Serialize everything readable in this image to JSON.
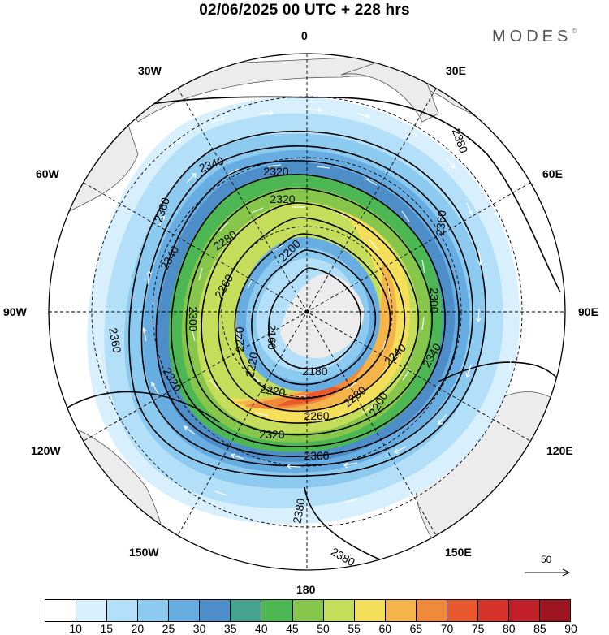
{
  "title": "02/06/2025  00 UTC  + 228 hrs",
  "brand": {
    "name": "MODES",
    "mark": "©"
  },
  "longitude_labels": {
    "lon_0": "0",
    "lon_30e": "30E",
    "lon_60e": "60E",
    "lon_90e": "90E",
    "lon_120e": "120E",
    "lon_150e": "150E",
    "lon_180": "180",
    "lon_150w": "150W",
    "lon_120w": "120W",
    "lon_90w": "90W",
    "lon_60w": "60W",
    "lon_30w": "30W"
  },
  "contour_labels": [
    "2380",
    "2380",
    "2360",
    "2360",
    "2340",
    "2340",
    "2320",
    "2320",
    "2300",
    "2280",
    "2260",
    "2240",
    "2220",
    "2200",
    "2180",
    "2160",
    "2340",
    "2380",
    "2360",
    "2300",
    "2280",
    "2260",
    "2240",
    "2220",
    "2200",
    "2320",
    "2320",
    "2360"
  ],
  "reference_vector": {
    "value": "50"
  },
  "colorbar": {
    "ticks": [
      "10",
      "15",
      "20",
      "25",
      "30",
      "35",
      "40",
      "45",
      "50",
      "55",
      "60",
      "65",
      "70",
      "75",
      "80",
      "85",
      "90"
    ],
    "colors": [
      "#ffffff",
      "#d8f0fd",
      "#b3e0f8",
      "#8ccaf0",
      "#68ade2",
      "#4d8ec9",
      "#46a38e",
      "#4cb753",
      "#86c74b",
      "#c5dd5a",
      "#f4df5b",
      "#f4b44a",
      "#f08a3a",
      "#e65a2e",
      "#d6332a",
      "#c01f28",
      "#9d1520"
    ]
  },
  "colors": {
    "land": "#ededed",
    "coast": "#333333",
    "contour": "#000000",
    "vector": "#ffffff",
    "grid": "#000000"
  }
}
